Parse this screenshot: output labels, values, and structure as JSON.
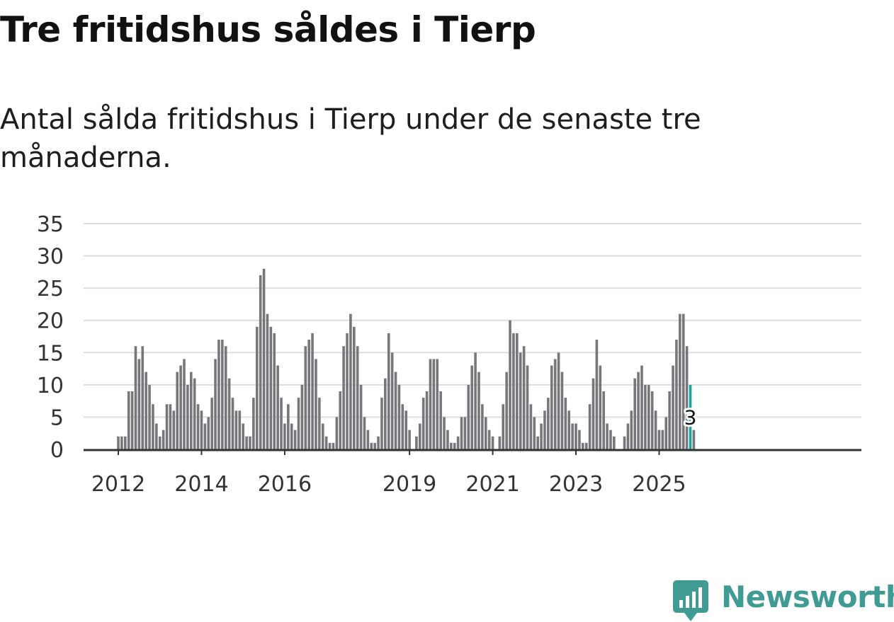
{
  "header": {
    "title": "Tre fritidshus såldes i Tierp",
    "subtitle": "Antal sålda fritidshus i Tierp under de senaste tre månaderna."
  },
  "brand": {
    "name": "Newsworthy",
    "icon": "newsworthy-logo-icon",
    "color": "#3f9b94"
  },
  "colors": {
    "bar": "#77767b",
    "highlight": "#1aa39a",
    "grid": "#dddddd",
    "axis": "#333333",
    "text": "#333333"
  },
  "chart_data": {
    "type": "bar",
    "title": "Tre fritidshus såldes i Tierp",
    "subtitle": "Antal sålda fritidshus i Tierp under de senaste tre månaderna.",
    "xlabel": "",
    "ylabel": "",
    "ylim": [
      0,
      35
    ],
    "yticks": [
      0,
      5,
      10,
      15,
      20,
      25,
      30,
      35
    ],
    "grid": true,
    "legend": "none",
    "start_month": "2012-01",
    "end_month": "2025-10",
    "xtick_labels": [
      {
        "label": "2012",
        "month": "2012-01"
      },
      {
        "label": "2014",
        "month": "2014-01"
      },
      {
        "label": "2016",
        "month": "2016-01"
      },
      {
        "label": "2019",
        "month": "2019-01"
      },
      {
        "label": "2021",
        "month": "2021-01"
      },
      {
        "label": "2023",
        "month": "2023-01"
      },
      {
        "label": "2025",
        "month": "2025-01"
      }
    ],
    "values": [
      2,
      2,
      2,
      9,
      9,
      16,
      14,
      16,
      12,
      10,
      7,
      4,
      2,
      3,
      7,
      7,
      6,
      12,
      13,
      14,
      10,
      12,
      11,
      7,
      6,
      4,
      5,
      8,
      14,
      17,
      17,
      16,
      11,
      8,
      6,
      6,
      4,
      2,
      2,
      8,
      19,
      27,
      28,
      21,
      19,
      18,
      13,
      8,
      4,
      7,
      4,
      3,
      8,
      10,
      16,
      17,
      18,
      14,
      8,
      4,
      2,
      1,
      1,
      5,
      9,
      16,
      18,
      21,
      19,
      16,
      10,
      5,
      3,
      1,
      1,
      2,
      8,
      11,
      18,
      15,
      12,
      10,
      7,
      6,
      3,
      0,
      2,
      4,
      8,
      9,
      14,
      14,
      14,
      9,
      5,
      3,
      1,
      1,
      2,
      5,
      5,
      10,
      13,
      15,
      12,
      7,
      5,
      3,
      2,
      0,
      2,
      7,
      12,
      20,
      18,
      18,
      15,
      16,
      13,
      7,
      5,
      2,
      4,
      6,
      8,
      13,
      14,
      15,
      12,
      8,
      6,
      4,
      4,
      3,
      1,
      1,
      7,
      11,
      17,
      13,
      9,
      4,
      3,
      2,
      0,
      0,
      2,
      4,
      6,
      11,
      12,
      13,
      10,
      10,
      9,
      6,
      3,
      3,
      5,
      9,
      13,
      17,
      21,
      21,
      16,
      10,
      3
    ],
    "highlight": {
      "month": "2025-10",
      "value": 3,
      "label": "3"
    }
  }
}
